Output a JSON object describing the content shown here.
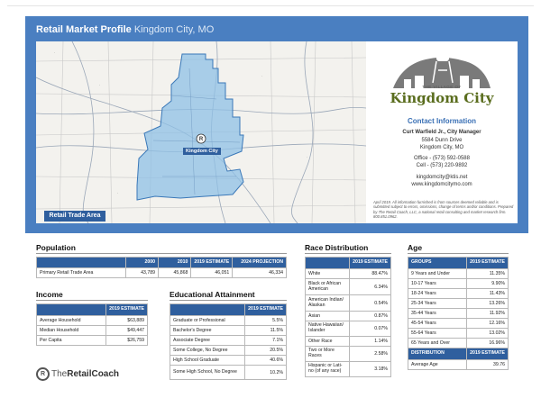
{
  "header": {
    "title": "Retail Market Profile",
    "location": "Kingdom City, MO"
  },
  "map": {
    "city_label": "Kingdom City",
    "area_label": "Retail Trade Area"
  },
  "logo": {
    "small_text": "THE VILLAGE OF",
    "big_text": "Kingdom City"
  },
  "contact": {
    "heading": "Contact Information",
    "name": "Curt Warfield Jr., City Manager",
    "address1": "5584 Dunn Drive",
    "address2": "Kingdom City, MO",
    "office": "Office - (573) 592-0588",
    "cell": "Cell - (573) 220-9892",
    "email": "kingdomcity@ktis.net",
    "web": "www.kingdomcitymo.com",
    "disclaimer": "April 2019. All information furnished is from sources deemed reliable and is submitted subject to errors, omissions, change of terms and/or conditions. Prepared by The Retail Coach, LLC, a national retail consulting and market research firm. 800.851.0962."
  },
  "population": {
    "title": "Population",
    "headers": [
      "",
      "2000",
      "2010",
      "2019 ESTIMATE",
      "2024 PROJECTION"
    ],
    "rows": [
      [
        "Primary Retail Trade Area",
        "43,789",
        "45,868",
        "46,051",
        "46,334"
      ]
    ]
  },
  "income": {
    "title": "Income",
    "headers": [
      "",
      "2019 ESTIMATE"
    ],
    "rows": [
      [
        "Average Household",
        "$63,889"
      ],
      [
        "Median Household",
        "$49,447"
      ],
      [
        "Per Capita",
        "$26,759"
      ]
    ]
  },
  "education": {
    "title": "Educational Attainment",
    "headers": [
      "",
      "2019 ESTIMATE"
    ],
    "rows": [
      [
        "Graduate or Professional",
        "5.5%"
      ],
      [
        "Bachelor's Degree",
        "11.5%"
      ],
      [
        "Associate Degree",
        "7.1%"
      ],
      [
        "Some College, No Degree",
        "20.5%"
      ],
      [
        "High School Graduate",
        "40.6%"
      ],
      [
        "Some High School, No Degree",
        "10.2%"
      ]
    ]
  },
  "race": {
    "title": "Race Distribution",
    "headers": [
      "",
      "2019 ESTIMATE"
    ],
    "rows": [
      [
        "White",
        "88.47%"
      ],
      [
        "Black or African American",
        "6.34%"
      ],
      [
        "American Indian/ Alaskan",
        "0.54%"
      ],
      [
        "Asian",
        "0.87%"
      ],
      [
        "Native Hawaiian/ Islander",
        "0.07%"
      ],
      [
        "Other Race",
        "1.14%"
      ],
      [
        "Two or More Races",
        "2.58%"
      ],
      [
        "Hispanic or Lati- no (of any race)",
        "3.18%"
      ]
    ]
  },
  "age": {
    "title": "Age",
    "headers": [
      "GROUPS",
      "2019 ESTIMATE"
    ],
    "rows": [
      [
        "9 Years and Under",
        "11.35%"
      ],
      [
        "10-17 Years",
        "9.90%"
      ],
      [
        "18-24 Years",
        "11.43%"
      ],
      [
        "25-34 Years",
        "13.26%"
      ],
      [
        "35-44 Years",
        "11.92%"
      ],
      [
        "45-54 Years",
        "12.16%"
      ],
      [
        "55-64 Years",
        "13.02%"
      ],
      [
        "65 Years and Over",
        "16.96%"
      ]
    ],
    "dist_headers": [
      "DISTRIBUTION",
      "2019 ESTIMATE"
    ],
    "dist_rows": [
      [
        "Average Age",
        "39.76"
      ]
    ]
  },
  "footer": {
    "brand_mark": "R",
    "brand_light": "The",
    "brand_bold": "RetailCoach"
  }
}
